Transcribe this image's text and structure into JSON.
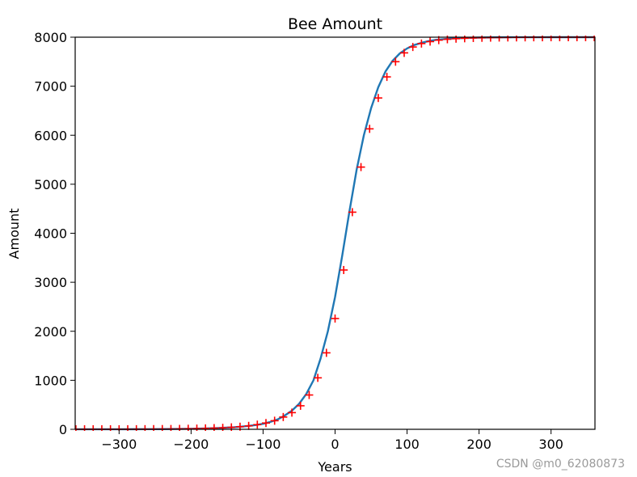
{
  "chart_data": {
    "type": "line",
    "title": "Bee Amount",
    "xlabel": "Years",
    "ylabel": "Amount",
    "xlim": [
      -361,
      361
    ],
    "ylim": [
      0,
      8000
    ],
    "xticks": [
      -300,
      -200,
      -100,
      0,
      100,
      200,
      300
    ],
    "xtick_labels": [
      "−300",
      "−200",
      "−100",
      "0",
      "100",
      "200",
      "300"
    ],
    "yticks": [
      0,
      1000,
      2000,
      3000,
      4000,
      5000,
      6000,
      7000,
      8000
    ],
    "ytick_labels": [
      "0",
      "1000",
      "2000",
      "3000",
      "4000",
      "5000",
      "6000",
      "7000",
      "8000"
    ],
    "grid": false,
    "series": [
      {
        "kind": "line",
        "color": "#1f77b4",
        "x": [
          -360,
          -340,
          -320,
          -300,
          -280,
          -260,
          -240,
          -220,
          -200,
          -180,
          -160,
          -140,
          -130,
          -120,
          -110,
          -100,
          -90,
          -80,
          -70,
          -60,
          -50,
          -40,
          -30,
          -20,
          -10,
          0,
          10,
          20,
          30,
          40,
          50,
          60,
          70,
          80,
          90,
          100,
          110,
          120,
          130,
          140,
          160,
          180,
          200,
          220,
          240,
          260,
          280,
          300,
          320,
          340,
          360
        ],
        "y": [
          0.3,
          0.4,
          0.6,
          1,
          2,
          3,
          4,
          7,
          11,
          17,
          28,
          43,
          55,
          69,
          88,
          112,
          150,
          200,
          280,
          380,
          520,
          720,
          1000,
          1450,
          2000,
          2700,
          3550,
          4450,
          5300,
          6000,
          6550,
          6980,
          7300,
          7520,
          7670,
          7770,
          7840,
          7885,
          7920,
          7945,
          7972,
          7985,
          7992,
          7996,
          7998,
          7999,
          7999.5,
          7999.8,
          7999.9,
          8000,
          8000
        ]
      },
      {
        "kind": "scatter",
        "marker": "+",
        "color": "#ff0000",
        "x": [
          -360,
          -348,
          -336,
          -324,
          -312,
          -300,
          -288,
          -276,
          -264,
          -252,
          -240,
          -228,
          -216,
          -204,
          -192,
          -180,
          -168,
          -156,
          -144,
          -132,
          -120,
          -108,
          -96,
          -84,
          -72,
          -60,
          -48,
          -36,
          -24,
          -12,
          0,
          12,
          24,
          36,
          48,
          60,
          72,
          84,
          96,
          108,
          120,
          132,
          144,
          156,
          168,
          180,
          192,
          204,
          216,
          228,
          240,
          252,
          264,
          276,
          288,
          300,
          312,
          324,
          336,
          348,
          360
        ],
        "y": [
          0.3,
          0.4,
          0.5,
          0.6,
          0.8,
          1,
          1.5,
          2,
          3,
          4,
          5,
          6,
          8,
          11,
          14,
          18,
          24,
          30,
          40,
          53,
          70,
          95,
          128,
          175,
          250,
          340,
          480,
          700,
          1050,
          1560,
          2260,
          3250,
          4430,
          5350,
          6130,
          6760,
          7190,
          7500,
          7680,
          7800,
          7870,
          7910,
          7940,
          7958,
          7970,
          7978,
          7984,
          7988,
          7991,
          7993,
          7995,
          7996,
          7997,
          7998,
          7998.5,
          7999,
          7999.3,
          7999.5,
          7999.7,
          7999.8,
          8000
        ]
      }
    ]
  },
  "watermark": "CSDN @m0_62080873"
}
